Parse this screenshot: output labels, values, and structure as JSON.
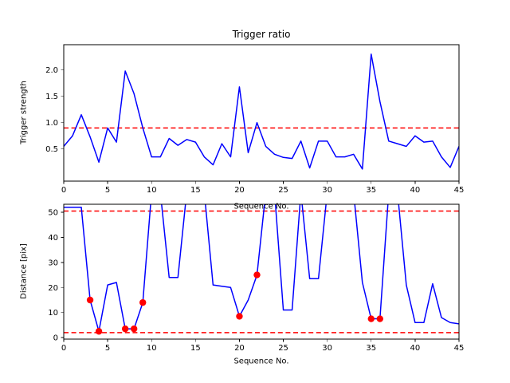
{
  "colors": {
    "series": "#0000ff",
    "threshold": "#ff0000",
    "marker": "#ff0000",
    "axes": "#000000"
  },
  "chart_data": [
    {
      "type": "line",
      "name": "trigger-ratio",
      "title": "Trigger ratio",
      "xlabel": "Sequence No.",
      "ylabel": "Trigger strength",
      "xlim": [
        0,
        45
      ],
      "ylim": [
        -0.11,
        2.48
      ],
      "xticks": [
        0,
        5,
        10,
        15,
        20,
        25,
        30,
        35,
        40,
        45
      ],
      "xtick_labels": [
        "0",
        "5",
        "10",
        "15",
        "20",
        "25",
        "30",
        "35",
        "40",
        "45"
      ],
      "yticks": [
        0.5,
        1.0,
        1.5,
        2.0
      ],
      "ytick_labels": [
        "0.5",
        "1.0",
        "1.5",
        "2.0"
      ],
      "hlines": [
        0.9
      ],
      "grid": false,
      "x": [
        0,
        1,
        2,
        3,
        4,
        5,
        6,
        7,
        8,
        9,
        10,
        11,
        12,
        13,
        14,
        15,
        16,
        17,
        18,
        19,
        20,
        21,
        22,
        23,
        24,
        25,
        26,
        27,
        28,
        29,
        30,
        31,
        32,
        33,
        34,
        35,
        36,
        37,
        38,
        39,
        40,
        41,
        42,
        43,
        44,
        45
      ],
      "y": [
        0.55,
        0.75,
        1.15,
        0.73,
        0.25,
        0.9,
        0.63,
        1.98,
        1.55,
        0.9,
        0.35,
        0.35,
        0.7,
        0.57,
        0.68,
        0.63,
        0.35,
        0.2,
        0.6,
        0.35,
        1.68,
        0.43,
        1.0,
        0.55,
        0.4,
        0.34,
        0.32,
        0.65,
        0.14,
        0.65,
        0.65,
        0.35,
        0.35,
        0.4,
        0.12,
        2.3,
        1.4,
        0.65,
        0.6,
        0.55,
        0.75,
        0.63,
        0.65,
        0.35,
        0.15,
        0.55
      ]
    },
    {
      "type": "line",
      "name": "distance",
      "title": "",
      "xlabel": "Sequence No.",
      "ylabel": "Distance [pix]",
      "xlim": [
        0,
        45
      ],
      "ylim": [
        -0.6,
        53.2
      ],
      "xticks": [
        0,
        5,
        10,
        15,
        20,
        25,
        30,
        35,
        40,
        45
      ],
      "xtick_labels": [
        "0",
        "5",
        "10",
        "15",
        "20",
        "25",
        "30",
        "35",
        "40",
        "45"
      ],
      "yticks": [
        0,
        10,
        20,
        30,
        40,
        50
      ],
      "ytick_labels": [
        "0",
        "10",
        "20",
        "30",
        "40",
        "50"
      ],
      "hlines": [
        50.5,
        2
      ],
      "grid": false,
      "x": [
        0,
        1,
        2,
        3,
        4,
        5,
        6,
        7,
        8,
        9,
        10,
        11,
        12,
        13,
        14,
        15,
        16,
        17,
        18,
        19,
        20,
        21,
        22,
        23,
        24,
        25,
        26,
        27,
        28,
        29,
        30,
        31,
        32,
        33,
        34,
        35,
        36,
        37,
        38,
        39,
        40,
        41,
        42,
        43,
        44,
        45
      ],
      "y": [
        52,
        52,
        52,
        15,
        2.5,
        21,
        22,
        3.5,
        3.5,
        14,
        58,
        58,
        24,
        24,
        58,
        58,
        58,
        21,
        20.5,
        20,
        8.5,
        15,
        25,
        58,
        58,
        11,
        11,
        58,
        23.5,
        23.5,
        58,
        58,
        58,
        58,
        22,
        7.5,
        7.5,
        58,
        58,
        21,
        6,
        6,
        21.5,
        8,
        6,
        5.5
      ],
      "markers": [
        [
          3,
          15
        ],
        [
          4,
          2.5
        ],
        [
          7,
          3.5
        ],
        [
          8,
          3.5
        ],
        [
          9,
          14
        ],
        [
          20,
          8.5
        ],
        [
          22,
          25
        ],
        [
          35,
          7.5
        ],
        [
          36,
          7.5
        ]
      ]
    }
  ]
}
